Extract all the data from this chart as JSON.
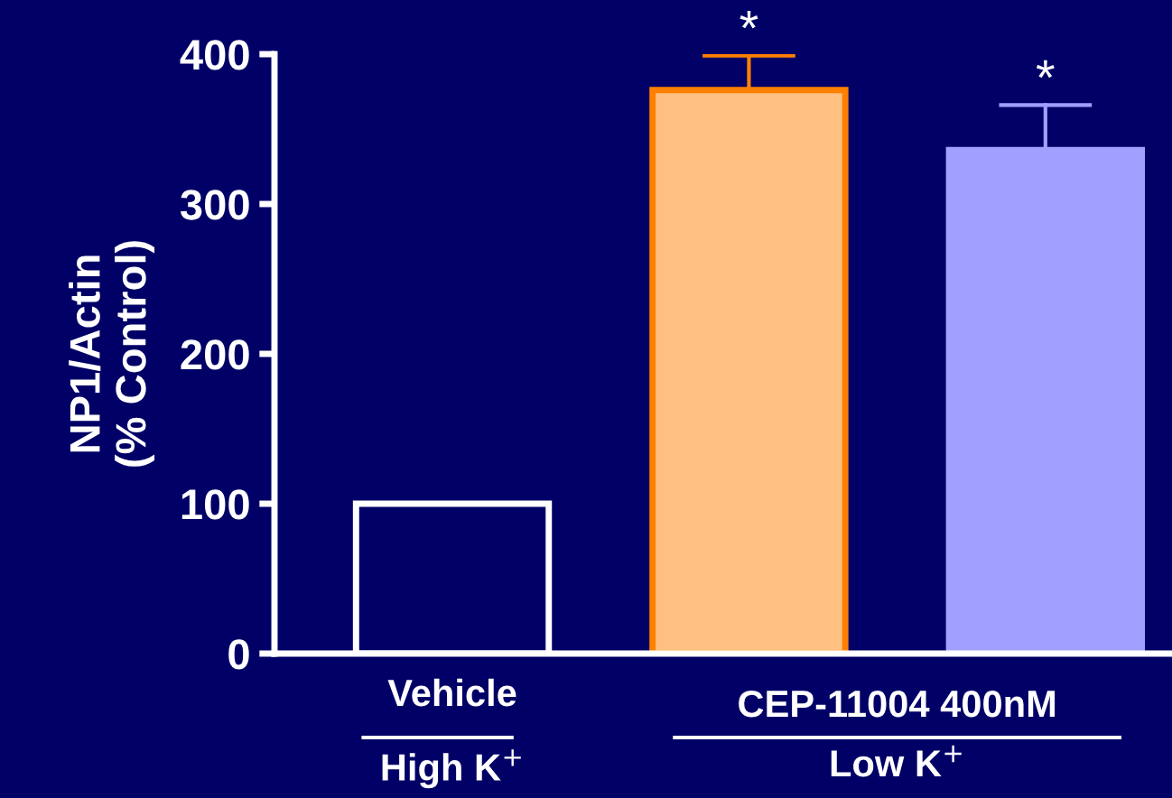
{
  "chart_data": {
    "type": "bar",
    "ylabel": "NP1/Actin\n(% Control)",
    "categories": [
      "Vehicle",
      null,
      null
    ],
    "values": [
      100,
      376,
      336
    ],
    "colors": [
      "#000066",
      "#ffc080",
      "#a0a0ff"
    ],
    "errors": [
      null,
      [
        376,
        399
      ],
      [
        336,
        366
      ]
    ],
    "ylim": [
      0,
      400
    ],
    "yticks": [
      0,
      100,
      200,
      300,
      400
    ],
    "grid": false,
    "legend": false,
    "annotations": [
      "*",
      "*",
      "CEP-11004 400nM",
      "High K$^{+}$",
      "Low K$^{+}$"
    ]
  }
}
